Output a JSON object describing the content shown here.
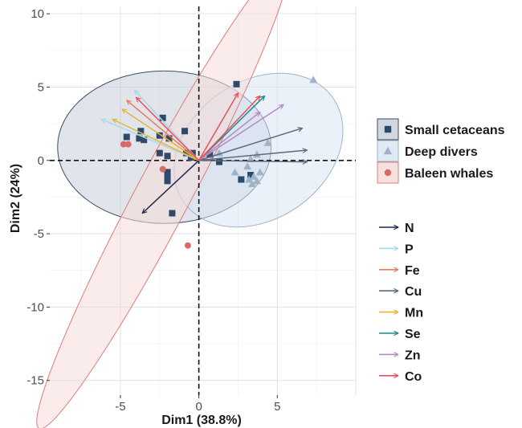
{
  "chart_data": {
    "type": "scatter",
    "xlabel": "Dim1 (38.8%)",
    "ylabel": "Dim2 (24%)",
    "xlim": [
      -9.5,
      10
    ],
    "ylim": [
      -16,
      10.5
    ],
    "x_ticks": [
      -5,
      0,
      5
    ],
    "y_ticks": [
      -15,
      -10,
      -5,
      0,
      5,
      10
    ],
    "x_tick_labels": [
      "-5",
      "0",
      "5"
    ],
    "y_tick_labels": [
      "-15",
      "-10",
      "-5",
      "0",
      "5",
      "10"
    ],
    "grid": true,
    "legend_position": "right",
    "groups": [
      {
        "name": "Small cetaceans",
        "marker": "square",
        "color": "#2e4a6b",
        "fill": "#c9d0da",
        "stroke": "#3b4e66",
        "ellipse": {
          "cx": -2.2,
          "cy": 0.9,
          "rx": 6.8,
          "ry": 5.2,
          "angle": 0
        },
        "points": [
          [
            2.4,
            5.2
          ],
          [
            -2.3,
            2.9
          ],
          [
            -4.6,
            1.6
          ],
          [
            -3.7,
            2.0
          ],
          [
            -3.5,
            1.4
          ],
          [
            -2.5,
            1.7
          ],
          [
            -0.9,
            2.0
          ],
          [
            -1.9,
            1.5
          ],
          [
            -3.8,
            1.5
          ],
          [
            -0.4,
            0.5
          ],
          [
            -0.8,
            0.5
          ],
          [
            -2.0,
            0.3
          ],
          [
            -2.5,
            0.5
          ],
          [
            -0.5,
            0.2
          ],
          [
            0.7,
            0.4
          ],
          [
            1.3,
            -0.1
          ],
          [
            2.7,
            -1.3
          ],
          [
            3.3,
            -1.0
          ],
          [
            -2.0,
            -0.8
          ],
          [
            -2.0,
            -1.1
          ],
          [
            -2.0,
            -1.4
          ],
          [
            -1.7,
            -3.6
          ]
        ]
      },
      {
        "name": "Deep divers",
        "marker": "triangle",
        "color": "#9fb3c8",
        "fill": "#d9e6f2",
        "stroke": "#9fb3c8",
        "ellipse": {
          "cx": 3.8,
          "cy": 0.7,
          "rx": 5.8,
          "ry": 4.7,
          "angle": -35
        },
        "points": [
          [
            7.3,
            5.5
          ],
          [
            4.4,
            1.2
          ],
          [
            3.7,
            0.4
          ],
          [
            3.3,
            0.1
          ],
          [
            3.1,
            -0.4
          ],
          [
            2.3,
            -0.8
          ],
          [
            3.9,
            -0.8
          ],
          [
            3.5,
            -1.1
          ],
          [
            3.2,
            -1.3
          ],
          [
            3.7,
            -1.4
          ],
          [
            3.4,
            -1.6
          ],
          [
            1.3,
            0.5
          ]
        ]
      },
      {
        "name": "Baleen whales",
        "marker": "circle",
        "color": "#d86a6a",
        "fill": "#f6dcd8",
        "stroke": "#e07a7a",
        "ellipse": {
          "cx": -2.3,
          "cy": -2.4,
          "rx": 16.8,
          "ry": 1.85,
          "angle": -62
        },
        "points": [
          [
            -4.8,
            1.1
          ],
          [
            -4.5,
            1.1
          ],
          [
            -2.3,
            -0.6
          ],
          [
            -0.7,
            -5.8
          ]
        ]
      }
    ],
    "loadings": [
      {
        "name": "N",
        "color": "#1f2a4d",
        "vectors": [
          [
            -3.6,
            -3.6
          ]
        ]
      },
      {
        "name": "P",
        "color": "#a8d8ea",
        "vectors": [
          [
            -6.2,
            2.8
          ],
          [
            -4.1,
            4.8
          ]
        ]
      },
      {
        "name": "Fe",
        "color": "#e67c5a",
        "vectors": [
          [
            -4.6,
            4.1
          ]
        ]
      },
      {
        "name": "Cu",
        "color": "#5a6b7d",
        "vectors": [
          [
            6.6,
            2.2
          ],
          [
            6.9,
            0.7
          ],
          [
            6.9,
            -0.1
          ]
        ]
      },
      {
        "name": "Mn",
        "color": "#e6b33a",
        "vectors": [
          [
            -5.5,
            2.8
          ],
          [
            -4.9,
            3.5
          ]
        ]
      },
      {
        "name": "Se",
        "color": "#1f8a8a",
        "vectors": [
          [
            4.2,
            4.4
          ]
        ]
      },
      {
        "name": "Zn",
        "color": "#b38ac9",
        "vectors": [
          [
            5.4,
            3.8
          ],
          [
            3.9,
            3.3
          ]
        ]
      },
      {
        "name": "Co",
        "color": "#e8505b",
        "vectors": [
          [
            2.5,
            4.6
          ],
          [
            3.9,
            4.4
          ],
          [
            -4.0,
            4.3
          ]
        ]
      }
    ]
  }
}
